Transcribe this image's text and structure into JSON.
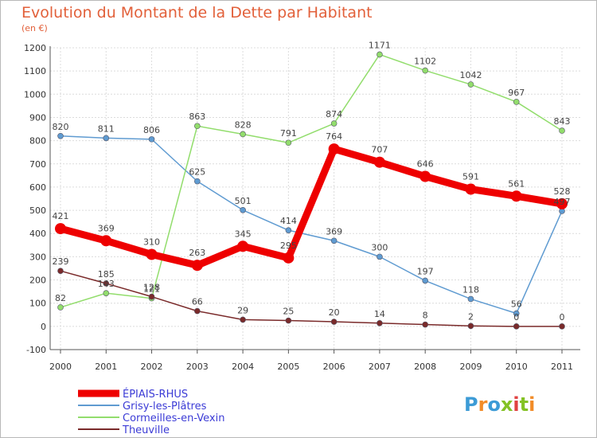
{
  "chart_data": {
    "type": "line",
    "title": "Evolution du Montant de la Dette par Habitant",
    "subtitle": "(en €)",
    "xlabel": "",
    "ylabel": "",
    "x": [
      "2000",
      "2001",
      "2002",
      "2003",
      "2004",
      "2005",
      "2006",
      "2007",
      "2008",
      "2009",
      "2010",
      "2011"
    ],
    "ylim": [
      -100,
      1200
    ],
    "yticks": [
      -100,
      0,
      100,
      200,
      300,
      400,
      500,
      600,
      700,
      800,
      900,
      1000,
      1100,
      1200
    ],
    "grid": true,
    "legend_position": "bottom-left",
    "series": [
      {
        "name": "ÉPIAIS-RHUS",
        "color": "#ee0000",
        "emphasis": true,
        "values": [
          421,
          369,
          310,
          263,
          345,
          295,
          764,
          707,
          646,
          591,
          561,
          528
        ],
        "labels": [
          "421",
          "369",
          "310",
          "263",
          "345",
          "295",
          "764",
          "707",
          "646",
          "591",
          "561",
          "528"
        ]
      },
      {
        "name": "Grisy-les-Plâtres",
        "color": "#5f9bd1",
        "emphasis": false,
        "values": [
          820,
          811,
          806,
          625,
          501,
          414,
          369,
          300,
          197,
          118,
          56,
          497
        ],
        "labels": [
          "820",
          "811",
          "806",
          "625",
          "501",
          "414",
          "369",
          "300",
          "197",
          "118",
          "56",
          "497"
        ]
      },
      {
        "name": "Cormeilles-en-Vexin",
        "color": "#92dd6c",
        "emphasis": false,
        "values": [
          82,
          143,
          121,
          863,
          828,
          791,
          874,
          1171,
          1102,
          1042,
          967,
          843
        ],
        "labels": [
          "82",
          "143",
          "121",
          "863",
          "828",
          "791",
          "874",
          "1171",
          "1102",
          "1042",
          "967",
          "843"
        ]
      },
      {
        "name": "Theuville",
        "color": "#7a2a2a",
        "emphasis": false,
        "values": [
          239,
          185,
          128,
          66,
          29,
          25,
          20,
          14,
          8,
          2,
          0,
          0
        ],
        "labels": [
          "239",
          "185",
          "128",
          "66",
          "29",
          "25",
          "20",
          "14",
          "8",
          "2",
          "0",
          "0"
        ]
      }
    ]
  },
  "logo": {
    "text": "Proxiti",
    "letter_colors": [
      "#3c9bd6",
      "#f28c28",
      "#3c9bd6",
      "#84c225",
      "#e04141",
      "#84c225",
      "#f28c28"
    ]
  }
}
